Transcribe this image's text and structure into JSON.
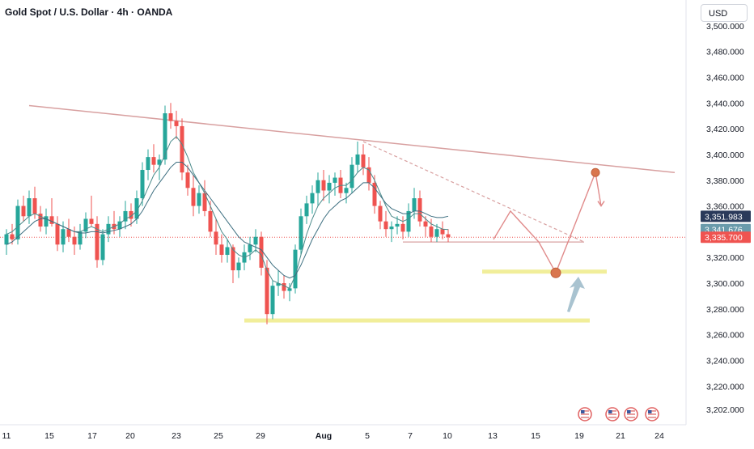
{
  "header": {
    "title": "Gold Spot / U.S. Dollar · 4h · OANDA",
    "currency": "USD"
  },
  "colors": {
    "up": "#26a69a",
    "down": "#ef5350",
    "ma_fast": "#4a8a8a",
    "ma_slow": "#3d6f80",
    "trendline": "#d8a0a0",
    "support": "#f1ee9a",
    "projection": "#e08a8a",
    "marker": "#d9764e",
    "arrow": "#9ab8c8",
    "current_badge": "#ef5350",
    "ma_badge": "#6a9bab",
    "hi_badge": "#2a3a5a"
  },
  "chart_data": {
    "type": "candlestick",
    "symbol": "Gold Spot / U.S. Dollar",
    "interval": "4h",
    "source": "OANDA",
    "ylim": [
      3190,
      3515
    ],
    "y_ticks": [
      "3,500.000",
      "3,480.000",
      "3,460.000",
      "3,440.000",
      "3,420.000",
      "3,400.000",
      "3,380.000",
      "3,360.000",
      "3,340.000",
      "3,320.000",
      "3,300.000",
      "3,280.000",
      "3,260.000",
      "3,240.000",
      "3,220.000",
      "3,202.000"
    ],
    "x_labels": [
      "11",
      "15",
      "17",
      "20",
      "23",
      "25",
      "29",
      "Aug",
      "5",
      "7",
      "10",
      "13",
      "15",
      "19",
      "21",
      "24"
    ],
    "price_badges": [
      {
        "label": "3,351.983",
        "value": 3351.983,
        "kind": "hi"
      },
      {
        "label": "3,341.676",
        "value": 3341.676,
        "kind": "ma"
      },
      {
        "label": "3,335.700",
        "value": 3335.7,
        "kind": "current"
      }
    ],
    "current_price": 3335.7,
    "series": [
      {
        "name": "OHLC",
        "ohlc": [
          [
            3330,
            3342,
            3322,
            3338
          ],
          [
            3338,
            3346,
            3330,
            3334
          ],
          [
            3334,
            3365,
            3330,
            3360
          ],
          [
            3360,
            3368,
            3348,
            3352
          ],
          [
            3352,
            3372,
            3346,
            3366
          ],
          [
            3366,
            3375,
            3350,
            3354
          ],
          [
            3354,
            3360,
            3340,
            3344
          ],
          [
            3344,
            3358,
            3338,
            3352
          ],
          [
            3352,
            3366,
            3344,
            3346
          ],
          [
            3346,
            3352,
            3325,
            3330
          ],
          [
            3330,
            3348,
            3324,
            3342
          ],
          [
            3342,
            3350,
            3332,
            3336
          ],
          [
            3336,
            3344,
            3322,
            3330
          ],
          [
            3330,
            3346,
            3326,
            3340
          ],
          [
            3340,
            3355,
            3335,
            3350
          ],
          [
            3350,
            3368,
            3344,
            3346
          ],
          [
            3346,
            3352,
            3312,
            3318
          ],
          [
            3318,
            3342,
            3314,
            3338
          ],
          [
            3338,
            3352,
            3332,
            3346
          ],
          [
            3346,
            3356,
            3338,
            3342
          ],
          [
            3342,
            3352,
            3336,
            3348
          ],
          [
            3348,
            3364,
            3342,
            3356
          ],
          [
            3356,
            3362,
            3344,
            3350
          ],
          [
            3350,
            3372,
            3346,
            3366
          ],
          [
            3366,
            3394,
            3360,
            3388
          ],
          [
            3388,
            3404,
            3380,
            3398
          ],
          [
            3398,
            3408,
            3386,
            3392
          ],
          [
            3392,
            3400,
            3380,
            3396
          ],
          [
            3396,
            3438,
            3392,
            3432
          ],
          [
            3432,
            3440,
            3420,
            3426
          ],
          [
            3426,
            3434,
            3412,
            3422
          ],
          [
            3422,
            3428,
            3380,
            3386
          ],
          [
            3386,
            3392,
            3368,
            3374
          ],
          [
            3374,
            3384,
            3352,
            3360
          ],
          [
            3360,
            3376,
            3354,
            3370
          ],
          [
            3370,
            3380,
            3352,
            3356
          ],
          [
            3356,
            3364,
            3336,
            3340
          ],
          [
            3340,
            3350,
            3322,
            3330
          ],
          [
            3330,
            3338,
            3316,
            3322
          ],
          [
            3322,
            3334,
            3316,
            3328
          ],
          [
            3328,
            3330,
            3300,
            3310
          ],
          [
            3310,
            3320,
            3304,
            3316
          ],
          [
            3316,
            3330,
            3310,
            3324
          ],
          [
            3324,
            3336,
            3318,
            3330
          ],
          [
            3330,
            3342,
            3324,
            3336
          ],
          [
            3336,
            3340,
            3306,
            3312
          ],
          [
            3312,
            3318,
            3268,
            3276
          ],
          [
            3276,
            3302,
            3272,
            3298
          ],
          [
            3298,
            3310,
            3290,
            3300
          ],
          [
            3300,
            3306,
            3288,
            3294
          ],
          [
            3294,
            3300,
            3286,
            3296
          ],
          [
            3296,
            3330,
            3292,
            3326
          ],
          [
            3326,
            3358,
            3322,
            3352
          ],
          [
            3352,
            3368,
            3346,
            3362
          ],
          [
            3362,
            3376,
            3354,
            3370
          ],
          [
            3370,
            3386,
            3360,
            3380
          ],
          [
            3380,
            3388,
            3364,
            3372
          ],
          [
            3372,
            3384,
            3362,
            3378
          ],
          [
            3378,
            3386,
            3368,
            3382
          ],
          [
            3382,
            3388,
            3366,
            3370
          ],
          [
            3370,
            3378,
            3362,
            3374
          ],
          [
            3374,
            3398,
            3370,
            3392
          ],
          [
            3392,
            3410,
            3386,
            3400
          ],
          [
            3400,
            3408,
            3384,
            3390
          ],
          [
            3390,
            3398,
            3372,
            3378
          ],
          [
            3378,
            3384,
            3354,
            3360
          ],
          [
            3360,
            3364,
            3342,
            3348
          ],
          [
            3348,
            3356,
            3336,
            3342
          ],
          [
            3342,
            3348,
            3332,
            3344
          ],
          [
            3344,
            3352,
            3338,
            3346
          ],
          [
            3346,
            3352,
            3334,
            3340
          ],
          [
            3340,
            3362,
            3336,
            3356
          ],
          [
            3356,
            3374,
            3350,
            3366
          ],
          [
            3366,
            3372,
            3344,
            3348
          ],
          [
            3348,
            3352,
            3336,
            3344
          ],
          [
            3344,
            3350,
            3332,
            3336
          ],
          [
            3336,
            3346,
            3332,
            3342
          ],
          [
            3342,
            3348,
            3334,
            3338
          ],
          [
            3338,
            3342,
            3332,
            3335.7
          ]
        ]
      },
      {
        "name": "MA fast",
        "values": [
          3338,
          3340,
          3344,
          3348,
          3352,
          3354,
          3352,
          3350,
          3348,
          3346,
          3344,
          3342,
          3340,
          3340,
          3342,
          3344,
          3342,
          3340,
          3342,
          3344,
          3346,
          3350,
          3352,
          3356,
          3364,
          3374,
          3384,
          3390,
          3400,
          3410,
          3414,
          3408,
          3398,
          3386,
          3378,
          3370,
          3360,
          3350,
          3340,
          3334,
          3326,
          3322,
          3320,
          3322,
          3326,
          3322,
          3310,
          3302,
          3300,
          3298,
          3296,
          3306,
          3322,
          3338,
          3350,
          3360,
          3366,
          3370,
          3374,
          3376,
          3376,
          3380,
          3386,
          3390,
          3388,
          3380,
          3370,
          3360,
          3352,
          3350,
          3348,
          3350,
          3354,
          3354,
          3350,
          3346,
          3344,
          3342,
          3341.676
        ]
      },
      {
        "name": "MA slow",
        "values": [
          3330,
          3332,
          3336,
          3340,
          3344,
          3348,
          3350,
          3350,
          3348,
          3346,
          3344,
          3342,
          3340,
          3339,
          3339,
          3340,
          3340,
          3339,
          3340,
          3341,
          3342,
          3344,
          3346,
          3350,
          3356,
          3364,
          3372,
          3378,
          3384,
          3390,
          3394,
          3394,
          3390,
          3384,
          3378,
          3372,
          3366,
          3360,
          3354,
          3348,
          3342,
          3336,
          3332,
          3330,
          3328,
          3326,
          3320,
          3314,
          3310,
          3306,
          3304,
          3306,
          3314,
          3324,
          3334,
          3342,
          3350,
          3356,
          3360,
          3364,
          3366,
          3370,
          3374,
          3378,
          3378,
          3374,
          3368,
          3362,
          3358,
          3356,
          3354,
          3354,
          3356,
          3356,
          3354,
          3352,
          3351,
          3351,
          3351.983
        ]
      }
    ],
    "annotations": {
      "trendline": {
        "from": [
          4,
          3438
        ],
        "to": [
          118,
          3386
        ]
      },
      "dashed_trend": {
        "from": [
          63,
          3410
        ],
        "to": [
          102,
          3332
        ]
      },
      "flat_support": {
        "from": [
          70,
          3332
        ],
        "to": [
          102,
          3332
        ]
      },
      "support_zone_upper": {
        "from": [
          84,
          3309
        ],
        "to": [
          106,
          3309
        ]
      },
      "support_zone_lower": {
        "from": [
          42,
          3271
        ],
        "to": [
          103,
          3271
        ]
      },
      "projection": [
        [
          86,
          3334
        ],
        [
          89,
          3356
        ],
        [
          94,
          3332
        ],
        [
          97,
          3308
        ],
        [
          104,
          3386
        ],
        [
          105,
          3360
        ]
      ],
      "blue_arrow": {
        "from": [
          99,
          3278
        ],
        "to": [
          101,
          3305
        ]
      }
    }
  }
}
